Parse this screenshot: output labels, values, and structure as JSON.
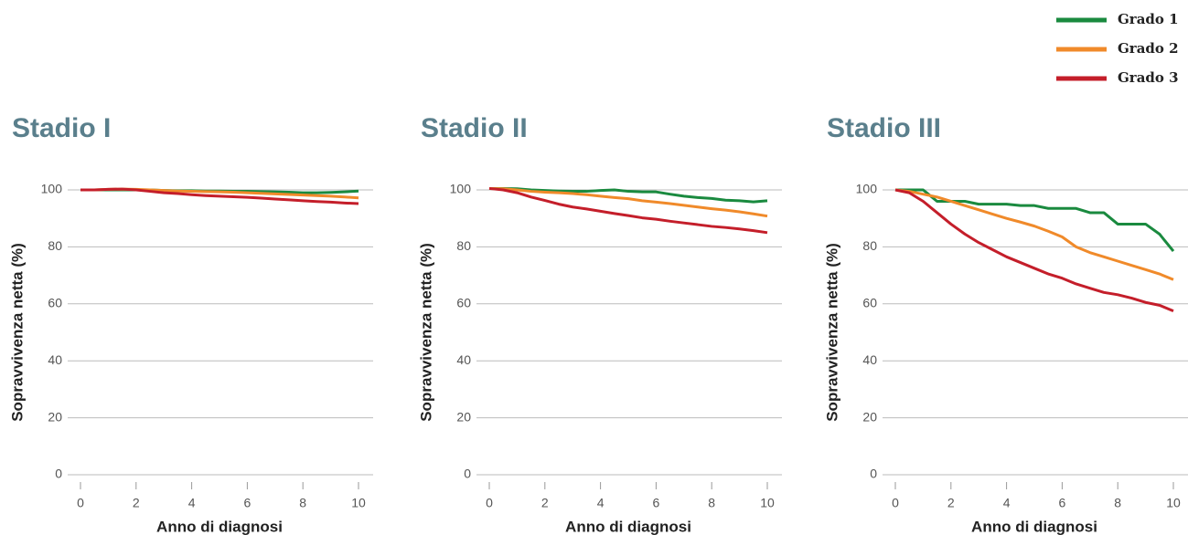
{
  "chart_data": [
    {
      "type": "line",
      "title": "Stadio I",
      "x_label": "Anno di diagnosi",
      "y_label": "Sopravvivenza netta (%)",
      "legend": "top-right",
      "x": [
        0,
        0.5,
        1,
        1.5,
        2,
        2.5,
        3,
        3.5,
        4,
        4.5,
        5,
        5.5,
        6,
        6.5,
        7,
        7.5,
        8,
        8.5,
        9,
        9.5,
        10
      ],
      "xlim": [
        0,
        10
      ],
      "xticks": [
        0,
        2,
        4,
        6,
        8,
        10
      ],
      "ylim": [
        0,
        100
      ],
      "yticks": [
        0,
        20,
        40,
        60,
        80,
        100
      ],
      "grid": true,
      "series": [
        {
          "name": "Grado 1",
          "color": "#1a8a3f",
          "values": [
            100,
            100,
            100,
            100,
            100,
            100,
            99.8,
            99.7,
            99.7,
            99.6,
            99.6,
            99.5,
            99.5,
            99.4,
            99.3,
            99.2,
            99,
            99,
            99.1,
            99.3,
            99.6
          ]
        },
        {
          "name": "Grado 2",
          "color": "#f08a2a",
          "values": [
            100,
            100,
            100.2,
            100.3,
            100.2,
            100,
            99.8,
            99.6,
            99.5,
            99.4,
            99.3,
            99.2,
            99,
            98.8,
            98.6,
            98.4,
            98.2,
            98,
            97.8,
            97.5,
            97.2
          ]
        },
        {
          "name": "Grado 3",
          "color": "#c41e2a",
          "values": [
            100,
            100,
            100.2,
            100.3,
            100,
            99.5,
            99,
            98.7,
            98.3,
            98,
            97.8,
            97.6,
            97.4,
            97.1,
            96.8,
            96.5,
            96.2,
            95.9,
            95.7,
            95.4,
            95.2
          ]
        }
      ]
    },
    {
      "type": "line",
      "title": "Stadio II",
      "x_label": "Anno di diagnosi",
      "y_label": "Sopravvivenza netta (%)",
      "x": [
        0,
        0.5,
        1,
        1.5,
        2,
        2.5,
        3,
        3.5,
        4,
        4.5,
        5,
        5.5,
        6,
        6.5,
        7,
        7.5,
        8,
        8.5,
        9,
        9.5,
        10
      ],
      "xlim": [
        0,
        10
      ],
      "xticks": [
        0,
        2,
        4,
        6,
        8,
        10
      ],
      "ylim": [
        0,
        100
      ],
      "yticks": [
        0,
        20,
        40,
        60,
        80,
        100
      ],
      "grid": true,
      "series": [
        {
          "name": "Grado 1",
          "color": "#1a8a3f",
          "values": [
            100.5,
            100.5,
            100.4,
            100,
            99.8,
            99.6,
            99.5,
            99.5,
            99.8,
            100,
            99.5,
            99.3,
            99.3,
            98.5,
            97.8,
            97.3,
            97,
            96.4,
            96.2,
            95.8,
            96.2
          ]
        },
        {
          "name": "Grado 2",
          "color": "#f08a2a",
          "values": [
            100.5,
            100.4,
            100,
            99.5,
            99.2,
            99,
            98.7,
            98.3,
            97.8,
            97.3,
            96.9,
            96.2,
            95.7,
            95.2,
            94.6,
            94,
            93.4,
            92.9,
            92.3,
            91.6,
            90.8
          ]
        },
        {
          "name": "Grado 3",
          "color": "#c41e2a",
          "values": [
            100.5,
            100,
            99,
            97.5,
            96.3,
            95,
            94,
            93.3,
            92.5,
            91.7,
            91,
            90.2,
            89.7,
            89,
            88.4,
            87.8,
            87.2,
            86.8,
            86.3,
            85.7,
            85
          ]
        }
      ]
    },
    {
      "type": "line",
      "title": "Stadio III",
      "x_label": "Anno di diagnosi",
      "y_label": "Sopravvivenza netta (%)",
      "x": [
        0,
        0.5,
        1,
        1.5,
        2,
        2.5,
        3,
        3.5,
        4,
        4.5,
        5,
        5.5,
        6,
        6.5,
        7,
        7.5,
        8,
        8.5,
        9,
        9.5,
        10
      ],
      "xlim": [
        0,
        10
      ],
      "xticks": [
        0,
        2,
        4,
        6,
        8,
        10
      ],
      "ylim": [
        0,
        100
      ],
      "yticks": [
        0,
        20,
        40,
        60,
        80,
        100
      ],
      "grid": true,
      "series": [
        {
          "name": "Grado 1",
          "color": "#1a8a3f",
          "values": [
            100,
            100,
            100,
            96,
            96,
            96,
            95,
            95,
            95,
            94.5,
            94.5,
            93.5,
            93.5,
            93.5,
            92,
            92,
            88,
            88,
            88,
            84.5,
            78.5
          ]
        },
        {
          "name": "Grado 2",
          "color": "#f08a2a",
          "values": [
            100,
            99.5,
            98.5,
            97.5,
            96,
            94.5,
            93,
            91.5,
            90,
            88.7,
            87.3,
            85.5,
            83.5,
            80,
            78,
            76.5,
            75,
            73.5,
            72,
            70.5,
            68.5
          ]
        },
        {
          "name": "Grado 3",
          "color": "#c41e2a",
          "values": [
            100,
            99,
            96,
            92,
            88,
            84.5,
            81.5,
            79,
            76.5,
            74.5,
            72.5,
            70.5,
            69,
            67,
            65.5,
            64,
            63.2,
            62,
            60.5,
            59.5,
            57.5
          ]
        }
      ]
    }
  ]
}
